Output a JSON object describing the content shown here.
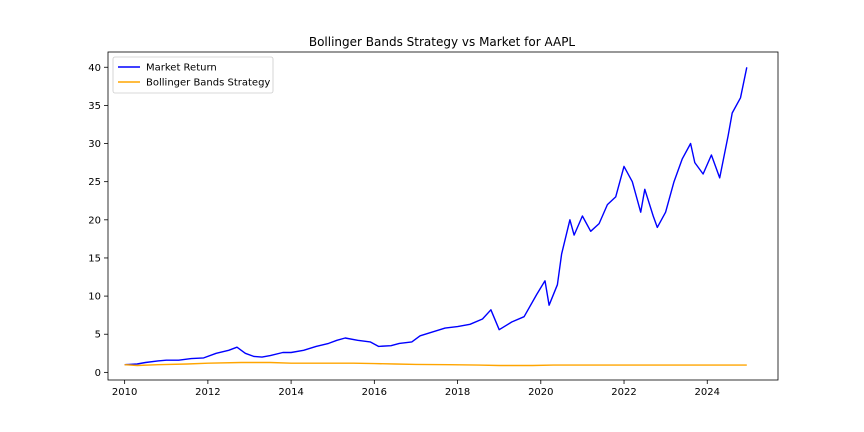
{
  "chart_data": {
    "type": "line",
    "title": "Bollinger Bands Strategy vs Market for AAPL",
    "xlabel": "",
    "ylabel": "",
    "xlim": [
      2009.6,
      2025.7
    ],
    "ylim": [
      -1,
      42
    ],
    "x_ticks": [
      2010,
      2012,
      2014,
      2016,
      2018,
      2020,
      2022,
      2024
    ],
    "y_ticks": [
      0,
      5,
      10,
      15,
      20,
      25,
      30,
      35,
      40
    ],
    "grid": false,
    "legend_position": "top-left",
    "series": [
      {
        "name": "Market Return",
        "color": "#0000ff",
        "x": [
          2010.0,
          2010.3,
          2010.5,
          2010.8,
          2011.0,
          2011.3,
          2011.6,
          2011.9,
          2012.2,
          2012.5,
          2012.7,
          2012.9,
          2013.1,
          2013.3,
          2013.5,
          2013.8,
          2014.0,
          2014.3,
          2014.6,
          2014.9,
          2015.1,
          2015.3,
          2015.6,
          2015.9,
          2016.1,
          2016.4,
          2016.6,
          2016.9,
          2017.1,
          2017.4,
          2017.7,
          2018.0,
          2018.3,
          2018.6,
          2018.8,
          2019.0,
          2019.3,
          2019.6,
          2019.9,
          2020.1,
          2020.2,
          2020.4,
          2020.5,
          2020.7,
          2020.8,
          2021.0,
          2021.2,
          2021.4,
          2021.6,
          2021.8,
          2022.0,
          2022.2,
          2022.4,
          2022.5,
          2022.7,
          2022.8,
          2023.0,
          2023.2,
          2023.4,
          2023.6,
          2023.7,
          2023.9,
          2024.1,
          2024.3,
          2024.5,
          2024.6,
          2024.8,
          2024.95
        ],
        "values": [
          1.0,
          1.1,
          1.3,
          1.5,
          1.6,
          1.6,
          1.8,
          1.9,
          2.5,
          2.9,
          3.3,
          2.5,
          2.1,
          2.0,
          2.2,
          2.6,
          2.6,
          2.9,
          3.4,
          3.8,
          4.2,
          4.5,
          4.2,
          4.0,
          3.4,
          3.5,
          3.8,
          4.0,
          4.8,
          5.3,
          5.8,
          6.0,
          6.3,
          7.0,
          8.2,
          5.6,
          6.6,
          7.3,
          10.2,
          12.0,
          8.8,
          11.5,
          15.5,
          20.0,
          18.0,
          20.5,
          18.5,
          19.5,
          22.0,
          23.0,
          27.0,
          25.0,
          21.0,
          24.0,
          20.5,
          19.0,
          21.0,
          25.0,
          28.0,
          30.0,
          27.5,
          26.0,
          28.5,
          25.5,
          31.0,
          34.0,
          36.0,
          40.0
        ]
      },
      {
        "name": "Bollinger Bands Strategy",
        "color": "#ffa500",
        "x": [
          2010.0,
          2010.3,
          2010.8,
          2011.5,
          2012.0,
          2012.8,
          2013.5,
          2014.0,
          2014.8,
          2015.5,
          2016.0,
          2016.5,
          2017.0,
          2017.8,
          2018.5,
          2019.0,
          2019.8,
          2020.3,
          2021.0,
          2021.8,
          2022.5,
          2023.2,
          2024.0,
          2024.95
        ],
        "values": [
          1.0,
          0.9,
          1.0,
          1.1,
          1.2,
          1.3,
          1.3,
          1.2,
          1.2,
          1.2,
          1.15,
          1.1,
          1.05,
          1.0,
          0.95,
          0.9,
          0.9,
          0.95,
          0.95,
          0.95,
          0.95,
          0.95,
          0.95,
          0.95
        ]
      }
    ]
  }
}
